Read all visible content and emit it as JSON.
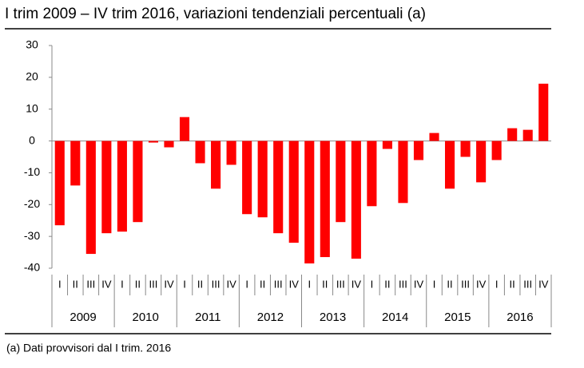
{
  "chart_data": {
    "type": "bar",
    "title": "I trim 2009 – IV trim 2016, variazioni tendenziali percentuali (a)",
    "note": "(a) Dati provvisori dal I trim. 2016",
    "categories": [
      "I",
      "II",
      "III",
      "IV",
      "I",
      "II",
      "III",
      "IV",
      "I",
      "II",
      "III",
      "IV",
      "I",
      "II",
      "III",
      "IV",
      "I",
      "II",
      "III",
      "IV",
      "I",
      "II",
      "III",
      "IV",
      "I",
      "II",
      "III",
      "IV",
      "I",
      "II",
      "III",
      "IV"
    ],
    "x_groups": [
      "2009",
      "2010",
      "2011",
      "2012",
      "2013",
      "2014",
      "2015",
      "2016"
    ],
    "values": [
      -26.5,
      -14,
      -35.5,
      -29,
      -28.5,
      -25.5,
      -0.5,
      -2,
      7.5,
      -7,
      -15,
      -7.5,
      -23,
      -24,
      -29,
      -32,
      -38.5,
      -36.5,
      -25.5,
      -37,
      -20.5,
      -2.5,
      -19.5,
      -6,
      2.5,
      -15,
      -5,
      -13,
      -6,
      4,
      3.5,
      18
    ],
    "color": "#ff0000",
    "ylim": [
      -40,
      30
    ],
    "yticks": [
      30,
      20,
      10,
      0,
      -10,
      -20,
      -30,
      -40
    ],
    "grid": false
  }
}
